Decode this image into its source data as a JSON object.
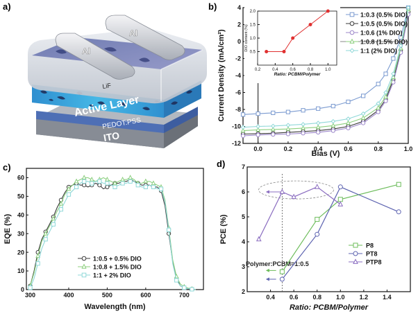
{
  "panel_a": {
    "label": "a)",
    "layers": {
      "al_left": "Al",
      "al_right": "Al",
      "lif": "LiF",
      "active": "Active Layer",
      "pedot": "PEDOT:PSS",
      "ito": "ITO"
    }
  },
  "panel_b": {
    "label": "b)"
  },
  "panel_c": {
    "label": "c)"
  },
  "panel_d": {
    "label": "d)",
    "annotation": "Polymer:PCBM=1:0.5"
  },
  "colors": {
    "blue_series": "#7a9ad0",
    "black_series": "#3a3a3a",
    "purple_series": "#9b86c9",
    "green_series": "#8ccf7e",
    "cyan_series": "#8fd8d8",
    "red_series": "#e03030",
    "p8": "#6cbc5a",
    "pt8": "#5d63b0",
    "ptp8": "#8a6cc0"
  },
  "chart_data": [
    {
      "id": "jv",
      "type": "line",
      "xlabel": "Bias (V)",
      "ylabel": "Current Density (mA/cm²)",
      "xlim": [
        -0.1,
        1.0
      ],
      "ylim": [
        -12,
        4
      ],
      "xticks": [
        0.0,
        0.2,
        0.4,
        0.6,
        0.8,
        1.0
      ],
      "yticks": [
        -12,
        -10,
        -8,
        -6,
        -4,
        -2,
        0,
        2,
        4
      ],
      "series": [
        {
          "name": "1:0.3 (0.5% DIO)",
          "marker": "square",
          "color": "#7a9ad0",
          "x": [
            -0.1,
            0.0,
            0.1,
            0.2,
            0.3,
            0.4,
            0.5,
            0.6,
            0.7,
            0.8,
            0.85,
            0.9,
            0.95,
            1.0
          ],
          "y": [
            -8.6,
            -8.5,
            -8.4,
            -8.3,
            -8.1,
            -7.9,
            -7.6,
            -7.1,
            -6.4,
            -5.0,
            -3.8,
            -2.0,
            0.5,
            4.0
          ]
        },
        {
          "name": "1:0.5 (0.5% DIO)",
          "marker": "circle",
          "color": "#3a3a3a",
          "x": [
            -0.1,
            0.0,
            0.1,
            0.2,
            0.3,
            0.4,
            0.5,
            0.6,
            0.7,
            0.8,
            0.85,
            0.9,
            0.95,
            1.0
          ],
          "y": [
            -10.9,
            -10.85,
            -10.8,
            -10.7,
            -10.6,
            -10.5,
            -10.3,
            -10.0,
            -9.4,
            -8.1,
            -6.8,
            -4.5,
            -1.0,
            3.5
          ]
        },
        {
          "name": "1:0.6 (1% DIO)",
          "marker": "circle",
          "color": "#9b86c9",
          "x": [
            -0.1,
            0.0,
            0.1,
            0.2,
            0.3,
            0.4,
            0.5,
            0.6,
            0.7,
            0.8,
            0.85,
            0.9,
            0.95,
            1.0
          ],
          "y": [
            -11.1,
            -11.0,
            -10.95,
            -10.9,
            -10.8,
            -10.7,
            -10.5,
            -10.2,
            -9.6,
            -8.3,
            -7.0,
            -4.8,
            -1.3,
            3.2
          ]
        },
        {
          "name": "1:0.8 (1.5% DIO)",
          "marker": "triangle",
          "color": "#8ccf7e",
          "x": [
            -0.1,
            0.0,
            0.1,
            0.2,
            0.3,
            0.4,
            0.5,
            0.6,
            0.7,
            0.8,
            0.85,
            0.9,
            0.95,
            1.0
          ],
          "y": [
            -10.5,
            -10.4,
            -10.35,
            -10.3,
            -10.2,
            -10.1,
            -9.9,
            -9.6,
            -9.0,
            -7.8,
            -6.5,
            -4.2,
            -0.8,
            3.8
          ]
        },
        {
          "name": "1:1 (2% DIO)",
          "marker": "diamond",
          "color": "#8fd8d8",
          "x": [
            -0.1,
            0.0,
            0.1,
            0.2,
            0.3,
            0.4,
            0.5,
            0.6,
            0.7,
            0.8,
            0.85,
            0.9,
            0.95,
            1.0
          ],
          "y": [
            -10.1,
            -10.0,
            -9.95,
            -9.85,
            -9.75,
            -9.6,
            -9.4,
            -9.1,
            -8.5,
            -7.3,
            -6.0,
            -3.8,
            -0.5,
            4.0
          ]
        }
      ]
    },
    {
      "id": "dio",
      "type": "line",
      "xlabel": "Ratio: PCBM/Polymer",
      "ylabel": "DIO content (%)",
      "xlim": [
        0.2,
        1.1
      ],
      "ylim": [
        0,
        2
      ],
      "xticks": [
        0.2,
        0.4,
        0.6,
        0.8,
        1.0
      ],
      "yticks": [
        0.5,
        1.0,
        1.5,
        2.0
      ],
      "series": [
        {
          "name": "",
          "color": "#e03030",
          "x": [
            0.3,
            0.5,
            0.6,
            0.8,
            1.0
          ],
          "y": [
            0.5,
            0.5,
            1.0,
            1.5,
            2.0
          ]
        }
      ]
    },
    {
      "id": "eqe",
      "type": "line",
      "xlabel": "Wavelength (nm)",
      "ylabel": "EQE (%)",
      "xlim": [
        290,
        750
      ],
      "ylim": [
        0,
        65
      ],
      "xticks": [
        300,
        400,
        500,
        600,
        700
      ],
      "yticks": [
        0,
        10,
        20,
        30,
        40,
        50,
        60
      ],
      "series": [
        {
          "name": "1:0.5 + 0.5% DIO",
          "marker": "circle",
          "color": "#3a3a3a",
          "x": [
            300,
            310,
            320,
            330,
            340,
            350,
            360,
            370,
            380,
            390,
            400,
            410,
            420,
            430,
            440,
            450,
            460,
            470,
            480,
            490,
            500,
            510,
            520,
            530,
            540,
            550,
            560,
            570,
            580,
            590,
            600,
            610,
            620,
            630,
            640,
            650,
            660,
            670,
            680,
            690,
            700,
            710,
            720,
            730
          ],
          "y": [
            2,
            10,
            20,
            27,
            31,
            35,
            39,
            44,
            48,
            52,
            55,
            56,
            57,
            56,
            56,
            55,
            56,
            57,
            56,
            54,
            55,
            56,
            57,
            57,
            58,
            58,
            59,
            58,
            57,
            56,
            56,
            56,
            55,
            55,
            53,
            45,
            30,
            15,
            6,
            2,
            1,
            0.5,
            0.3,
            0
          ]
        },
        {
          "name": "1:0.8 + 1.5% DIO",
          "marker": "triangle",
          "color": "#8ccf7e",
          "x": [
            300,
            310,
            320,
            330,
            340,
            350,
            360,
            370,
            380,
            390,
            400,
            410,
            420,
            430,
            440,
            450,
            460,
            470,
            480,
            490,
            500,
            510,
            520,
            530,
            540,
            550,
            560,
            570,
            580,
            590,
            600,
            610,
            620,
            630,
            640,
            650,
            660,
            670,
            680,
            690,
            700,
            710,
            720,
            730
          ],
          "y": [
            2,
            9,
            18,
            26,
            30,
            34,
            38,
            42,
            46,
            51,
            54,
            56,
            58,
            59,
            60,
            60,
            59,
            58,
            59,
            60,
            59,
            58,
            57,
            58,
            59,
            59,
            60,
            59,
            57,
            57,
            58,
            58,
            57,
            56,
            55,
            48,
            33,
            16,
            7,
            3,
            1.5,
            0.8,
            0.3,
            0
          ]
        },
        {
          "name": "1:1 + 2% DIO",
          "marker": "square",
          "color": "#8fd8d8",
          "x": [
            300,
            310,
            320,
            330,
            340,
            350,
            360,
            370,
            380,
            390,
            400,
            410,
            420,
            430,
            440,
            450,
            460,
            470,
            480,
            490,
            500,
            510,
            520,
            530,
            540,
            550,
            560,
            570,
            580,
            590,
            600,
            610,
            620,
            630,
            640,
            650,
            660,
            670,
            680,
            690,
            700,
            710,
            720,
            730
          ],
          "y": [
            1,
            6,
            14,
            22,
            27,
            31,
            35,
            39,
            43,
            47,
            51,
            53,
            55,
            57,
            58,
            58,
            57,
            58,
            58,
            57,
            57,
            56,
            55,
            56,
            57,
            57,
            58,
            58,
            56,
            55,
            55,
            56,
            55,
            54,
            54,
            47,
            32,
            14,
            5,
            2,
            1,
            0.5,
            0.2,
            0
          ]
        }
      ]
    },
    {
      "id": "pce",
      "type": "line",
      "xlabel": "Ratio: PCBM/Polymer",
      "ylabel": "PCE (%)",
      "xlim": [
        0.2,
        1.6
      ],
      "ylim": [
        2,
        7
      ],
      "xticks": [
        0.4,
        0.6,
        0.8,
        1.0,
        1.2,
        1.4
      ],
      "yticks": [
        2,
        3,
        4,
        5,
        6,
        7
      ],
      "series": [
        {
          "name": "P8",
          "marker": "square",
          "color": "#6cbc5a",
          "x": [
            0.5,
            0.8,
            1.0,
            1.5
          ],
          "y": [
            2.8,
            4.9,
            5.7,
            6.3
          ]
        },
        {
          "name": "PT8",
          "marker": "circle",
          "color": "#5d63b0",
          "x": [
            0.5,
            0.8,
            1.0,
            1.5
          ],
          "y": [
            2.5,
            4.3,
            6.2,
            5.2
          ]
        },
        {
          "name": "PTP8",
          "marker": "triangle",
          "color": "#8a6cc0",
          "x": [
            0.3,
            0.5,
            0.6,
            0.8,
            1.0
          ],
          "y": [
            4.1,
            6.0,
            5.8,
            6.2,
            5.5
          ]
        }
      ]
    }
  ]
}
